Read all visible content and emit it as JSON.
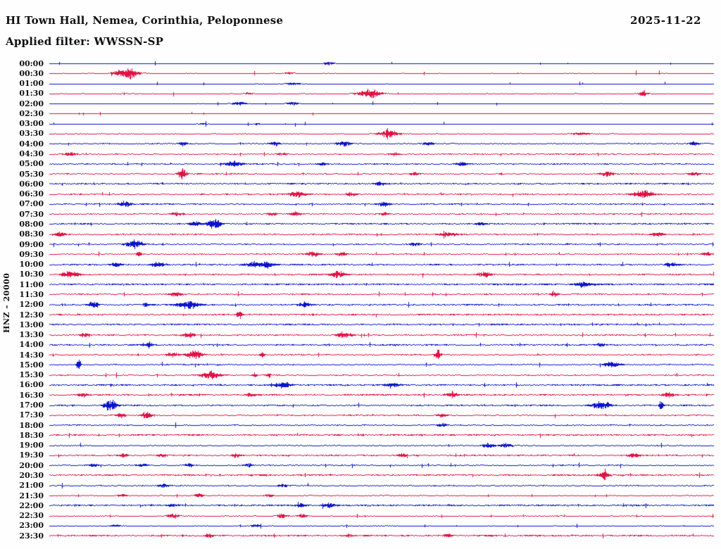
{
  "header": {
    "title": "HI Town Hall, Nemea, Corinthia, Peloponnese",
    "date": "2025-11-22",
    "filter_text": "Applied filter: WWSSN-SP"
  },
  "chart_data": {
    "type": "line",
    "subtype": "seismogram-helicorder",
    "title": "HI Town Hall, Nemea, Corinthia, Peloponnese",
    "date": "2025-11-22",
    "filter": "WWSSN-SP",
    "axis_label": "HNZ – 20000",
    "channel": "HNZ",
    "scale": 20000,
    "row_interval_minutes": 30,
    "row_count": 48,
    "legend": "none",
    "grid": "off",
    "trace_colors": {
      "even": "#0b12cc",
      "odd": "#e01245"
    },
    "rows": [
      {
        "time": "00:00",
        "color": "blue",
        "noise": 0.12,
        "events": [
          [
            0.42,
            3,
            5
          ]
        ]
      },
      {
        "time": "00:30",
        "color": "red",
        "noise": 0.22,
        "events": [
          [
            0.119,
            10,
            9
          ],
          [
            0.1,
            3,
            4
          ],
          [
            0.36,
            2,
            4
          ]
        ]
      },
      {
        "time": "01:00",
        "color": "blue",
        "noise": 0.16,
        "events": [
          [
            0.365,
            2.5,
            7
          ]
        ]
      },
      {
        "time": "01:30",
        "color": "red",
        "noise": 0.25,
        "events": [
          [
            0.481,
            7,
            11
          ],
          [
            0.893,
            4,
            5
          ],
          [
            0.3,
            2,
            5
          ]
        ]
      },
      {
        "time": "02:00",
        "color": "blue",
        "noise": 0.18,
        "events": [
          [
            0.285,
            3,
            7
          ],
          [
            0.365,
            3.5,
            5
          ]
        ]
      },
      {
        "time": "02:30",
        "color": "red",
        "noise": 0.1,
        "events": []
      },
      {
        "time": "03:00",
        "color": "blue",
        "noise": 0.1,
        "events": [
          [
            0.23,
            1.5,
            4
          ],
          [
            0.31,
            1.5,
            4
          ]
        ]
      },
      {
        "time": "03:30",
        "color": "red",
        "noise": 0.28,
        "events": [
          [
            0.51,
            6,
            10
          ],
          [
            0.8,
            2.5,
            9
          ]
        ]
      },
      {
        "time": "04:00",
        "color": "blue",
        "noise": 0.42,
        "events": [
          [
            0.2,
            3,
            5
          ],
          [
            0.34,
            3,
            5
          ],
          [
            0.443,
            4,
            7
          ],
          [
            0.57,
            3,
            5
          ],
          [
            0.97,
            3,
            5
          ]
        ]
      },
      {
        "time": "04:30",
        "color": "red",
        "noise": 0.48,
        "events": [
          [
            0.03,
            3,
            6
          ],
          [
            0.35,
            2.5,
            5
          ],
          [
            0.52,
            2.5,
            5
          ]
        ]
      },
      {
        "time": "05:00",
        "color": "blue",
        "noise": 0.52,
        "events": [
          [
            0.277,
            5,
            8
          ],
          [
            0.41,
            3,
            5
          ],
          [
            0.62,
            3,
            6
          ]
        ]
      },
      {
        "time": "05:30",
        "color": "red",
        "noise": 0.46,
        "events": [
          [
            0.199,
            9,
            4
          ],
          [
            0.55,
            3,
            5
          ],
          [
            0.838,
            4,
            7
          ],
          [
            0.97,
            3,
            5
          ]
        ]
      },
      {
        "time": "06:00",
        "color": "blue",
        "noise": 0.55,
        "events": [
          [
            0.497,
            3,
            6
          ]
        ]
      },
      {
        "time": "06:30",
        "color": "red",
        "noise": 0.48,
        "events": [
          [
            0.373,
            5,
            8
          ],
          [
            0.455,
            3,
            5
          ],
          [
            0.894,
            6,
            11
          ]
        ]
      },
      {
        "time": "07:00",
        "color": "blue",
        "noise": 0.52,
        "events": [
          [
            0.113,
            5,
            6
          ],
          [
            0.503,
            4,
            6
          ]
        ]
      },
      {
        "time": "07:30",
        "color": "red",
        "noise": 0.48,
        "events": [
          [
            0.192,
            3,
            5
          ],
          [
            0.335,
            3,
            5
          ],
          [
            0.37,
            4,
            5
          ],
          [
            0.503,
            3,
            4
          ]
        ]
      },
      {
        "time": "08:00",
        "color": "blue",
        "noise": 0.56,
        "events": [
          [
            0.22,
            5,
            6
          ],
          [
            0.245,
            5,
            6
          ],
          [
            0.252,
            5,
            5
          ],
          [
            0.65,
            3,
            5
          ]
        ]
      },
      {
        "time": "08:30",
        "color": "red",
        "noise": 0.52,
        "events": [
          [
            0.016,
            4,
            5
          ],
          [
            0.6,
            4,
            8
          ],
          [
            0.915,
            4,
            6
          ]
        ]
      },
      {
        "time": "09:00",
        "color": "blue",
        "noise": 0.46,
        "events": [
          [
            0.127,
            8,
            8
          ],
          [
            0.55,
            3,
            5
          ]
        ]
      },
      {
        "time": "09:30",
        "color": "red",
        "noise": 0.46,
        "events": [
          [
            0.134,
            5,
            3
          ],
          [
            0.397,
            4,
            6
          ],
          [
            0.44,
            4,
            5
          ],
          [
            0.988,
            4,
            4
          ]
        ]
      },
      {
        "time": "10:00",
        "color": "blue",
        "noise": 0.56,
        "events": [
          [
            0.1,
            4,
            5
          ],
          [
            0.164,
            5,
            6
          ],
          [
            0.307,
            5,
            8
          ],
          [
            0.327,
            5,
            6
          ],
          [
            0.935,
            4,
            6
          ]
        ]
      },
      {
        "time": "10:30",
        "color": "red",
        "noise": 0.52,
        "events": [
          [
            0.032,
            5,
            9
          ],
          [
            0.434,
            5,
            7
          ],
          [
            0.655,
            5,
            7
          ]
        ]
      },
      {
        "time": "11:00",
        "color": "blue",
        "noise": 0.62,
        "events": [
          [
            0.803,
            4,
            8
          ]
        ]
      },
      {
        "time": "11:30",
        "color": "red",
        "noise": 0.5,
        "events": [
          [
            0.19,
            4,
            6
          ],
          [
            0.76,
            3,
            5
          ]
        ]
      },
      {
        "time": "12:00",
        "color": "blue",
        "noise": 0.55,
        "events": [
          [
            0.067,
            5,
            5
          ],
          [
            0.145,
            4,
            3
          ],
          [
            0.209,
            7,
            11
          ],
          [
            0.385,
            4,
            6
          ]
        ]
      },
      {
        "time": "12:30",
        "color": "red",
        "noise": 0.55,
        "events": [
          [
            0.286,
            6,
            3
          ]
        ]
      },
      {
        "time": "13:00",
        "color": "blue",
        "noise": 0.6,
        "events": []
      },
      {
        "time": "13:30",
        "color": "red",
        "noise": 0.5,
        "events": [
          [
            0.053,
            3,
            5
          ],
          [
            0.21,
            4,
            6
          ],
          [
            0.443,
            5,
            7
          ]
        ]
      },
      {
        "time": "14:00",
        "color": "blue",
        "noise": 0.55,
        "events": [
          [
            0.15,
            7,
            3
          ],
          [
            0.83,
            3,
            5
          ]
        ]
      },
      {
        "time": "14:30",
        "color": "red",
        "noise": 0.46,
        "events": [
          [
            0.185,
            4,
            6
          ],
          [
            0.217,
            7,
            8
          ],
          [
            0.32,
            6,
            2
          ],
          [
            0.584,
            8,
            3
          ]
        ]
      },
      {
        "time": "15:00",
        "color": "blue",
        "noise": 0.46,
        "events": [
          [
            0.044,
            10,
            2
          ],
          [
            0.846,
            4,
            9
          ]
        ]
      },
      {
        "time": "15:30",
        "color": "red",
        "noise": 0.46,
        "events": [
          [
            0.243,
            7,
            9
          ],
          [
            0.308,
            4,
            2
          ],
          [
            0.33,
            4,
            2
          ]
        ]
      },
      {
        "time": "16:00",
        "color": "blue",
        "noise": 0.6,
        "events": [
          [
            0.352,
            5,
            7
          ],
          [
            0.516,
            4,
            7
          ]
        ]
      },
      {
        "time": "16:30",
        "color": "red",
        "noise": 0.6,
        "events": [
          [
            0.05,
            3,
            5
          ],
          [
            0.303,
            3,
            5
          ],
          [
            0.605,
            5,
            6
          ],
          [
            0.93,
            4,
            6
          ]
        ]
      },
      {
        "time": "17:00",
        "color": "blue",
        "noise": 0.55,
        "events": [
          [
            0.088,
            6,
            5
          ],
          [
            0.097,
            6,
            5
          ],
          [
            0.83,
            7,
            9
          ],
          [
            0.92,
            9,
            2
          ]
        ]
      },
      {
        "time": "17:30",
        "color": "red",
        "noise": 0.5,
        "events": [
          [
            0.108,
            4,
            5
          ],
          [
            0.146,
            6,
            5
          ],
          [
            0.59,
            3,
            5
          ]
        ]
      },
      {
        "time": "18:00",
        "color": "blue",
        "noise": 0.45,
        "events": [
          [
            0.59,
            3,
            5
          ]
        ]
      },
      {
        "time": "18:30",
        "color": "red",
        "noise": 0.6,
        "events": []
      },
      {
        "time": "19:00",
        "color": "blue",
        "noise": 0.4,
        "events": [
          [
            0.66,
            4,
            6
          ],
          [
            0.687,
            4,
            5
          ]
        ]
      },
      {
        "time": "19:30",
        "color": "red",
        "noise": 0.55,
        "events": [
          [
            0.11,
            3,
            5
          ],
          [
            0.17,
            3,
            4
          ],
          [
            0.28,
            3,
            4
          ],
          [
            0.53,
            3,
            4
          ],
          [
            0.88,
            3,
            6
          ]
        ]
      },
      {
        "time": "20:00",
        "color": "blue",
        "noise": 0.42,
        "events": [
          [
            0.065,
            3,
            5
          ],
          [
            0.14,
            3,
            5
          ],
          [
            0.21,
            3,
            4
          ],
          [
            0.3,
            3,
            4
          ]
        ]
      },
      {
        "time": "20:30",
        "color": "red",
        "noise": 0.62,
        "events": [
          [
            0.835,
            9,
            4
          ]
        ]
      },
      {
        "time": "21:00",
        "color": "blue",
        "noise": 0.46,
        "events": [
          [
            0.17,
            4,
            5
          ],
          [
            0.35,
            3,
            5
          ]
        ]
      },
      {
        "time": "21:30",
        "color": "red",
        "noise": 0.36,
        "events": [
          [
            0.11,
            3,
            4
          ],
          [
            0.225,
            4,
            4
          ],
          [
            0.33,
            3,
            4
          ]
        ]
      },
      {
        "time": "22:00",
        "color": "blue",
        "noise": 0.62,
        "events": [
          [
            0.185,
            3,
            5
          ],
          [
            0.38,
            3,
            5
          ],
          [
            0.42,
            4,
            6
          ]
        ]
      },
      {
        "time": "22:30",
        "color": "red",
        "noise": 0.3,
        "events": [
          [
            0.185,
            4,
            6
          ],
          [
            0.35,
            4,
            5
          ],
          [
            0.38,
            3,
            5
          ]
        ]
      },
      {
        "time": "23:00",
        "color": "blue",
        "noise": 0.26,
        "events": [
          [
            0.1,
            2,
            5
          ],
          [
            0.31,
            2,
            5
          ]
        ]
      },
      {
        "time": "23:30",
        "color": "red",
        "noise": 0.6,
        "events": [
          [
            0.24,
            3,
            4
          ],
          [
            0.45,
            3,
            4
          ],
          [
            0.6,
            3,
            4
          ]
        ]
      }
    ]
  }
}
